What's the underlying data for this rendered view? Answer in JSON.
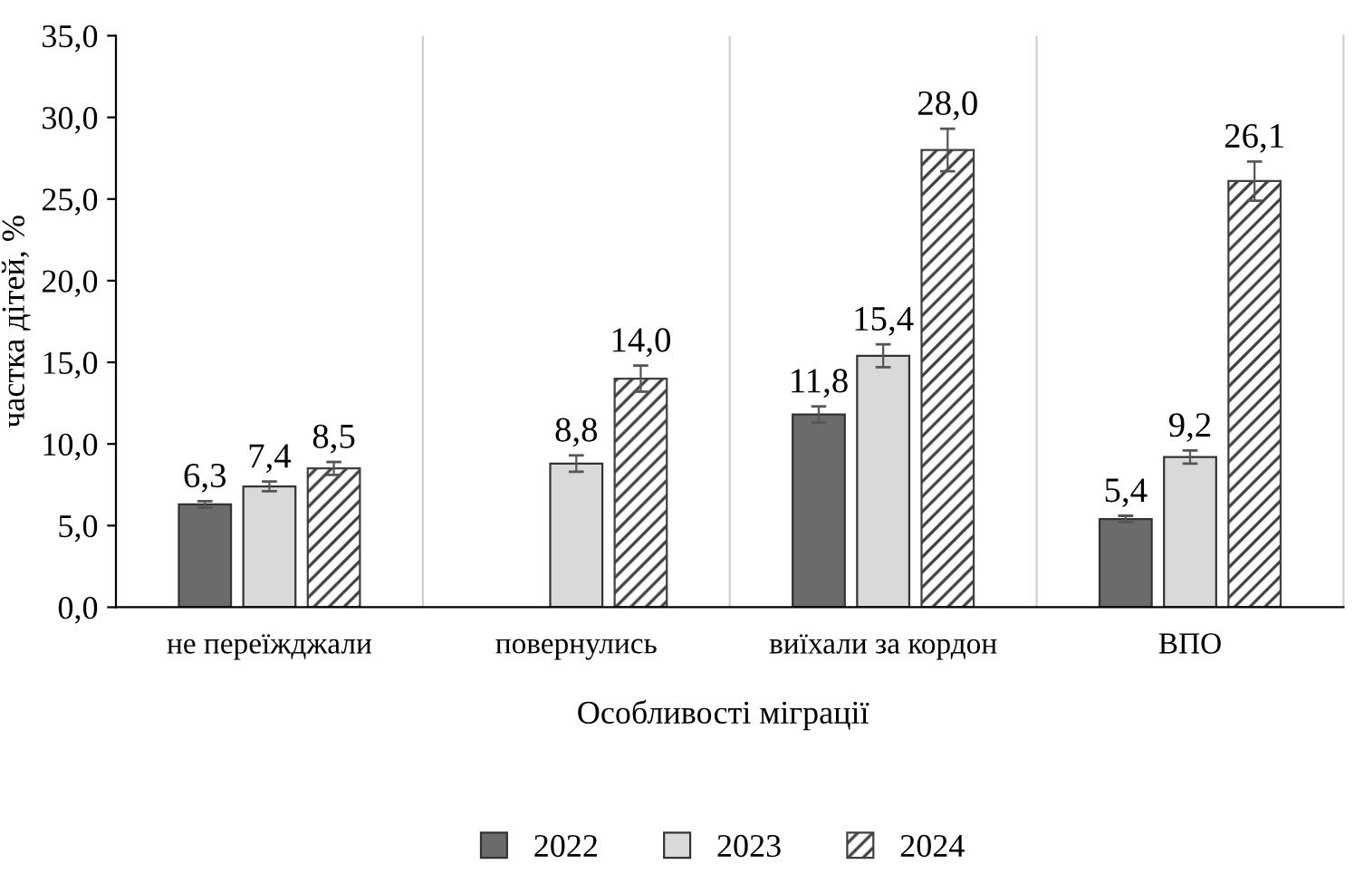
{
  "chart_data": {
    "type": "bar",
    "xlabel": "Особливості міграції",
    "ylabel": "частка дітей, %",
    "categories": [
      "не переїжджали",
      "повернулись",
      "виїхали за кордон",
      "ВПО"
    ],
    "series": [
      {
        "name": "2022",
        "color": "#6b6b6b",
        "values": [
          6.3,
          null,
          11.8,
          5.4
        ],
        "value_labels": [
          "6,3",
          null,
          "11,8",
          "5,4"
        ],
        "errors": [
          0.2,
          null,
          0.5,
          0.2
        ]
      },
      {
        "name": "2023",
        "color": "#d9d9d9",
        "values": [
          7.4,
          8.8,
          15.4,
          9.2
        ],
        "value_labels": [
          "7,4",
          "8,8",
          "15,4",
          "9,2"
        ],
        "errors": [
          0.3,
          0.5,
          0.7,
          0.4
        ]
      },
      {
        "name": "2024",
        "color": "#404040",
        "values": [
          8.5,
          14.0,
          28.0,
          26.1
        ],
        "value_labels": [
          "8,5",
          "14,0",
          "28,0",
          "26,1"
        ],
        "errors": [
          0.4,
          0.8,
          1.3,
          1.2
        ]
      }
    ],
    "ylim": [
      0,
      35
    ],
    "yticks": [
      {
        "value": 0,
        "label": "0,0"
      },
      {
        "value": 5,
        "label": "5,0"
      },
      {
        "value": 10,
        "label": "10,0"
      },
      {
        "value": 15,
        "label": "15,0"
      },
      {
        "value": 20,
        "label": "20,0"
      },
      {
        "value": 25,
        "label": "25,0"
      },
      {
        "value": 30,
        "label": "30,0"
      },
      {
        "value": 35,
        "label": "35,0"
      }
    ],
    "grid": "x",
    "legend": "bottom"
  }
}
